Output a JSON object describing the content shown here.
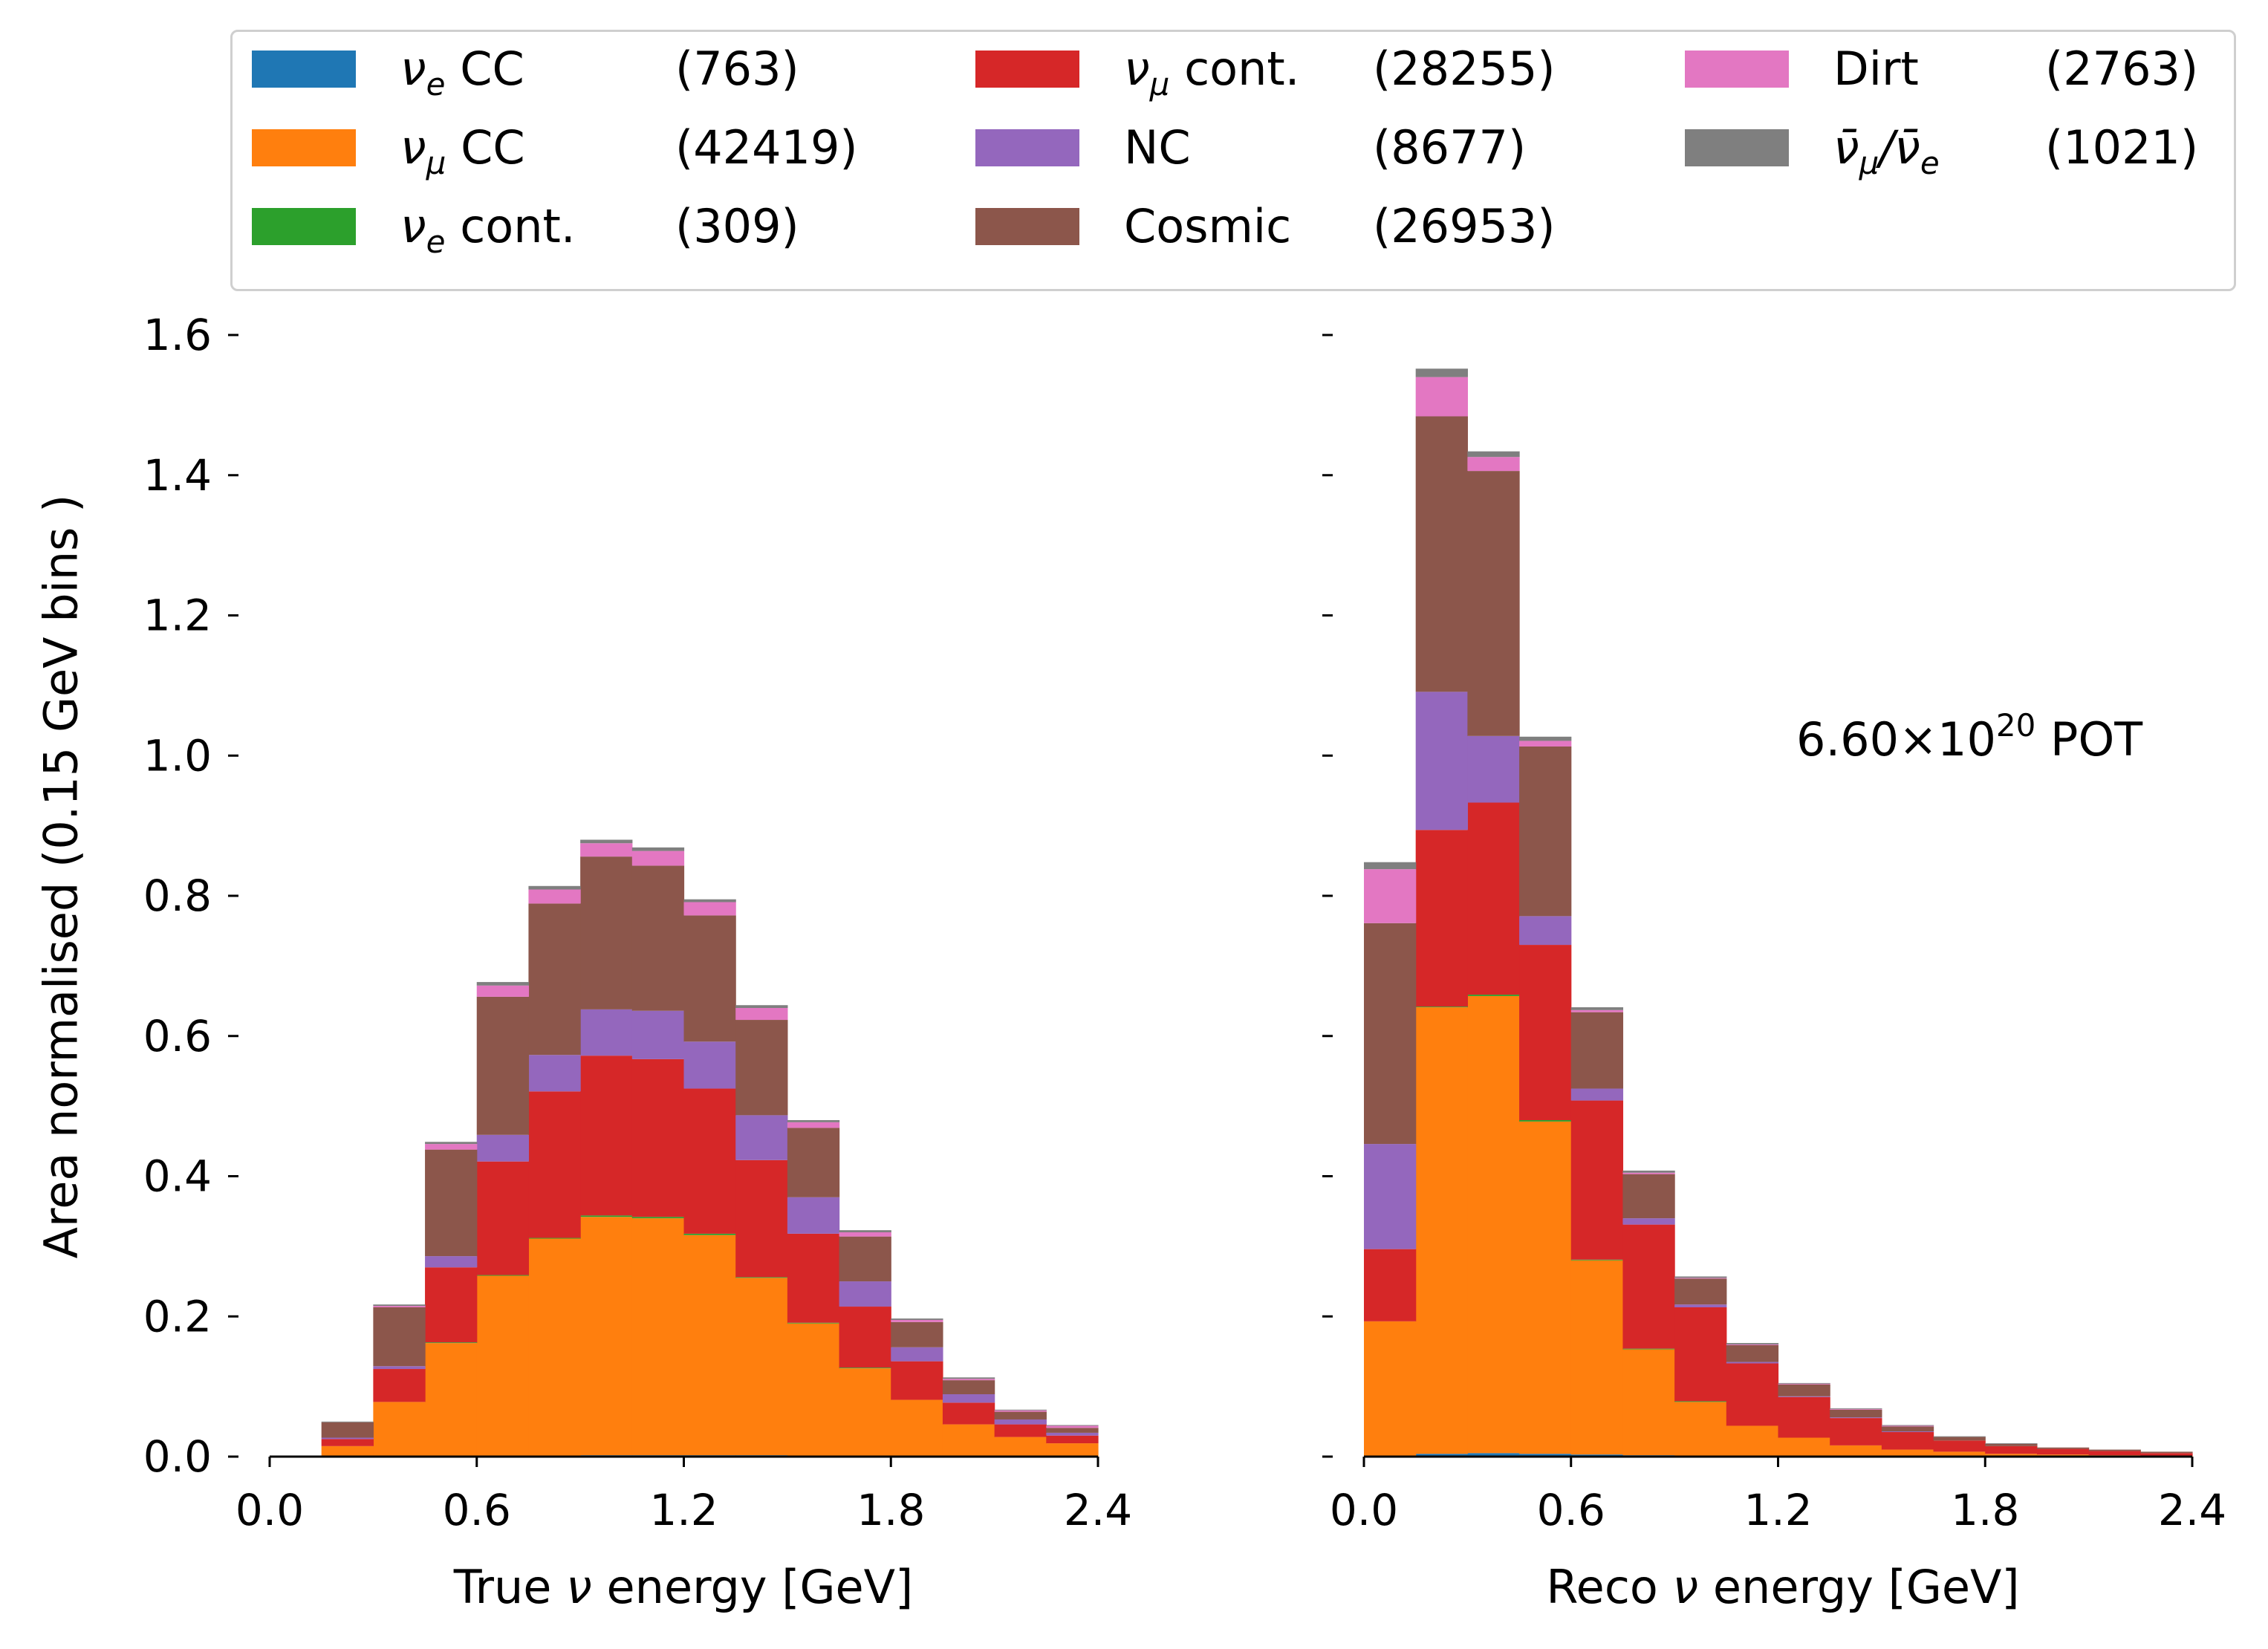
{
  "legend": {
    "items": [
      {
        "key": "nue_cc",
        "symbol": "ν",
        "sub": "e",
        "suffix": " CC",
        "count": "(763)",
        "color": "#1f77b4"
      },
      {
        "key": "numu_cc",
        "symbol": "ν",
        "sub": "μ",
        "suffix": " CC",
        "count": "(42419)",
        "color": "#ff7f0e"
      },
      {
        "key": "nue_cont",
        "symbol": "ν",
        "sub": "e",
        "suffix": " cont.",
        "count": "(309)",
        "color": "#2ca02c"
      },
      {
        "key": "numu_cont",
        "symbol": "ν",
        "sub": "μ",
        "suffix": " cont.",
        "count": "(28255)",
        "color": "#d62728"
      },
      {
        "key": "nc",
        "symbol": "",
        "sub": "",
        "suffix": "NC",
        "count": "(8677)",
        "color": "#9467bd"
      },
      {
        "key": "cosmic",
        "symbol": "",
        "sub": "",
        "suffix": "Cosmic",
        "count": "(26953)",
        "color": "#8c564b"
      },
      {
        "key": "dirt",
        "symbol": "",
        "sub": "",
        "suffix": "Dirt",
        "count": "(2763)",
        "color": "#e377c2"
      },
      {
        "key": "nubar",
        "symbol": "ν̄",
        "sub": "μ",
        "suffix": "/ν̄",
        "sub2": "e",
        "count": "(1021)",
        "color": "#7f7f7f"
      }
    ]
  },
  "annotation": {
    "pot_prefix": "6.60×10",
    "pot_exp": "20",
    "pot_suffix": " POT"
  },
  "ylabel": "Area normalised (0.15 GeV bins )",
  "chart_data": [
    {
      "type": "bar",
      "stacked": true,
      "xlabel_prefix": "True ",
      "xlabel_symbol": "ν",
      "xlabel_suffix": " energy [GeV]",
      "ylabel": "Area normalised (0.15 GeV bins )",
      "xlim": [
        0.0,
        2.4
      ],
      "ylim": [
        0.0,
        1.6
      ],
      "xticks": [
        "0.0",
        "0.6",
        "1.2",
        "1.8",
        "2.4"
      ],
      "yticks": [
        "0.0",
        "0.2",
        "0.4",
        "0.6",
        "0.8",
        "1.0",
        "1.2",
        "1.4",
        "1.6"
      ],
      "bin_edges": [
        0.0,
        0.15,
        0.3,
        0.45,
        0.6,
        0.75,
        0.9,
        1.05,
        1.2,
        1.35,
        1.5,
        1.65,
        1.8,
        1.95,
        2.1,
        2.25,
        2.4
      ],
      "series": [
        {
          "name": "νe CC",
          "values": [
            0.0,
            0.0,
            0.0,
            0.0,
            0.001,
            0.001,
            0.002,
            0.002,
            0.002,
            0.002,
            0.001,
            0.001,
            0.001,
            0.0,
            0.0,
            0.0
          ]
        },
        {
          "name": "νμ CC",
          "values": [
            0.0,
            0.015,
            0.078,
            0.162,
            0.257,
            0.31,
            0.34,
            0.338,
            0.314,
            0.253,
            0.189,
            0.125,
            0.08,
            0.046,
            0.028,
            0.019
          ]
        },
        {
          "name": "νe cont.",
          "values": [
            0.0,
            0.0,
            0.0,
            0.001,
            0.001,
            0.001,
            0.002,
            0.002,
            0.002,
            0.001,
            0.001,
            0.001,
            0.0,
            0.0,
            0.0,
            0.0
          ]
        },
        {
          "name": "νμ cont.",
          "values": [
            0.0,
            0.01,
            0.047,
            0.107,
            0.162,
            0.209,
            0.228,
            0.225,
            0.207,
            0.167,
            0.127,
            0.087,
            0.055,
            0.031,
            0.018,
            0.011
          ]
        },
        {
          "name": "NC",
          "values": [
            0.0,
            0.002,
            0.004,
            0.016,
            0.038,
            0.052,
            0.066,
            0.069,
            0.067,
            0.064,
            0.052,
            0.036,
            0.02,
            0.012,
            0.007,
            0.004
          ]
        },
        {
          "name": "Cosmic",
          "values": [
            0.0,
            0.022,
            0.084,
            0.152,
            0.197,
            0.216,
            0.218,
            0.207,
            0.18,
            0.136,
            0.099,
            0.064,
            0.036,
            0.02,
            0.011,
            0.007
          ]
        },
        {
          "name": "Dirt",
          "values": [
            0.0,
            0.0,
            0.002,
            0.008,
            0.016,
            0.02,
            0.019,
            0.021,
            0.019,
            0.017,
            0.008,
            0.006,
            0.003,
            0.002,
            0.002,
            0.003
          ]
        },
        {
          "name": "ν̄μ/ν̄e",
          "values": [
            0.0,
            0.001,
            0.002,
            0.003,
            0.005,
            0.005,
            0.005,
            0.005,
            0.004,
            0.004,
            0.003,
            0.003,
            0.002,
            0.002,
            0.001,
            0.001
          ]
        }
      ]
    },
    {
      "type": "bar",
      "stacked": true,
      "xlabel_prefix": "Reco ",
      "xlabel_symbol": "ν",
      "xlabel_suffix": " energy [GeV]",
      "xlim": [
        0.0,
        2.4
      ],
      "ylim": [
        0.0,
        1.6
      ],
      "xticks": [
        "0.0",
        "0.6",
        "1.2",
        "1.8",
        "2.4"
      ],
      "yticks": [
        "0.0",
        "0.2",
        "0.4",
        "0.6",
        "0.8",
        "1.0",
        "1.2",
        "1.4",
        "1.6"
      ],
      "bin_edges": [
        0.0,
        0.15,
        0.3,
        0.45,
        0.6,
        0.75,
        0.9,
        1.05,
        1.2,
        1.35,
        1.5,
        1.65,
        1.8,
        1.95,
        2.1,
        2.25,
        2.4
      ],
      "series": [
        {
          "name": "νe CC",
          "values": [
            0.001,
            0.004,
            0.005,
            0.004,
            0.003,
            0.002,
            0.001,
            0.001,
            0.001,
            0.0,
            0.0,
            0.0,
            0.0,
            0.0,
            0.0,
            0.0
          ]
        },
        {
          "name": "νμ CC",
          "values": [
            0.192,
            0.637,
            0.652,
            0.474,
            0.277,
            0.151,
            0.077,
            0.043,
            0.026,
            0.016,
            0.01,
            0.007,
            0.004,
            0.003,
            0.002,
            0.001
          ]
        },
        {
          "name": "νe cont.",
          "values": [
            0.0,
            0.001,
            0.002,
            0.002,
            0.001,
            0.001,
            0.001,
            0.0,
            0.0,
            0.0,
            0.0,
            0.0,
            0.0,
            0.0,
            0.0,
            0.0
          ]
        },
        {
          "name": "νμ cont.",
          "values": [
            0.103,
            0.252,
            0.274,
            0.25,
            0.227,
            0.177,
            0.134,
            0.089,
            0.058,
            0.039,
            0.025,
            0.016,
            0.011,
            0.008,
            0.006,
            0.004
          ]
        },
        {
          "name": "NC",
          "values": [
            0.15,
            0.197,
            0.095,
            0.041,
            0.017,
            0.009,
            0.004,
            0.002,
            0.001,
            0.001,
            0.001,
            0.0,
            0.0,
            0.0,
            0.0,
            0.0
          ]
        },
        {
          "name": "Cosmic",
          "values": [
            0.315,
            0.393,
            0.378,
            0.242,
            0.109,
            0.063,
            0.037,
            0.024,
            0.017,
            0.011,
            0.007,
            0.005,
            0.003,
            0.002,
            0.002,
            0.002
          ]
        },
        {
          "name": "Dirt",
          "values": [
            0.077,
            0.056,
            0.02,
            0.008,
            0.003,
            0.002,
            0.001,
            0.001,
            0.001,
            0.001,
            0.001,
            0.0,
            0.0,
            0.0,
            0.0,
            0.0
          ]
        },
        {
          "name": "ν̄μ/ν̄e",
          "values": [
            0.01,
            0.012,
            0.008,
            0.006,
            0.004,
            0.003,
            0.002,
            0.002,
            0.001,
            0.001,
            0.001,
            0.001,
            0.001,
            0.0,
            0.0,
            0.0
          ]
        }
      ]
    }
  ]
}
